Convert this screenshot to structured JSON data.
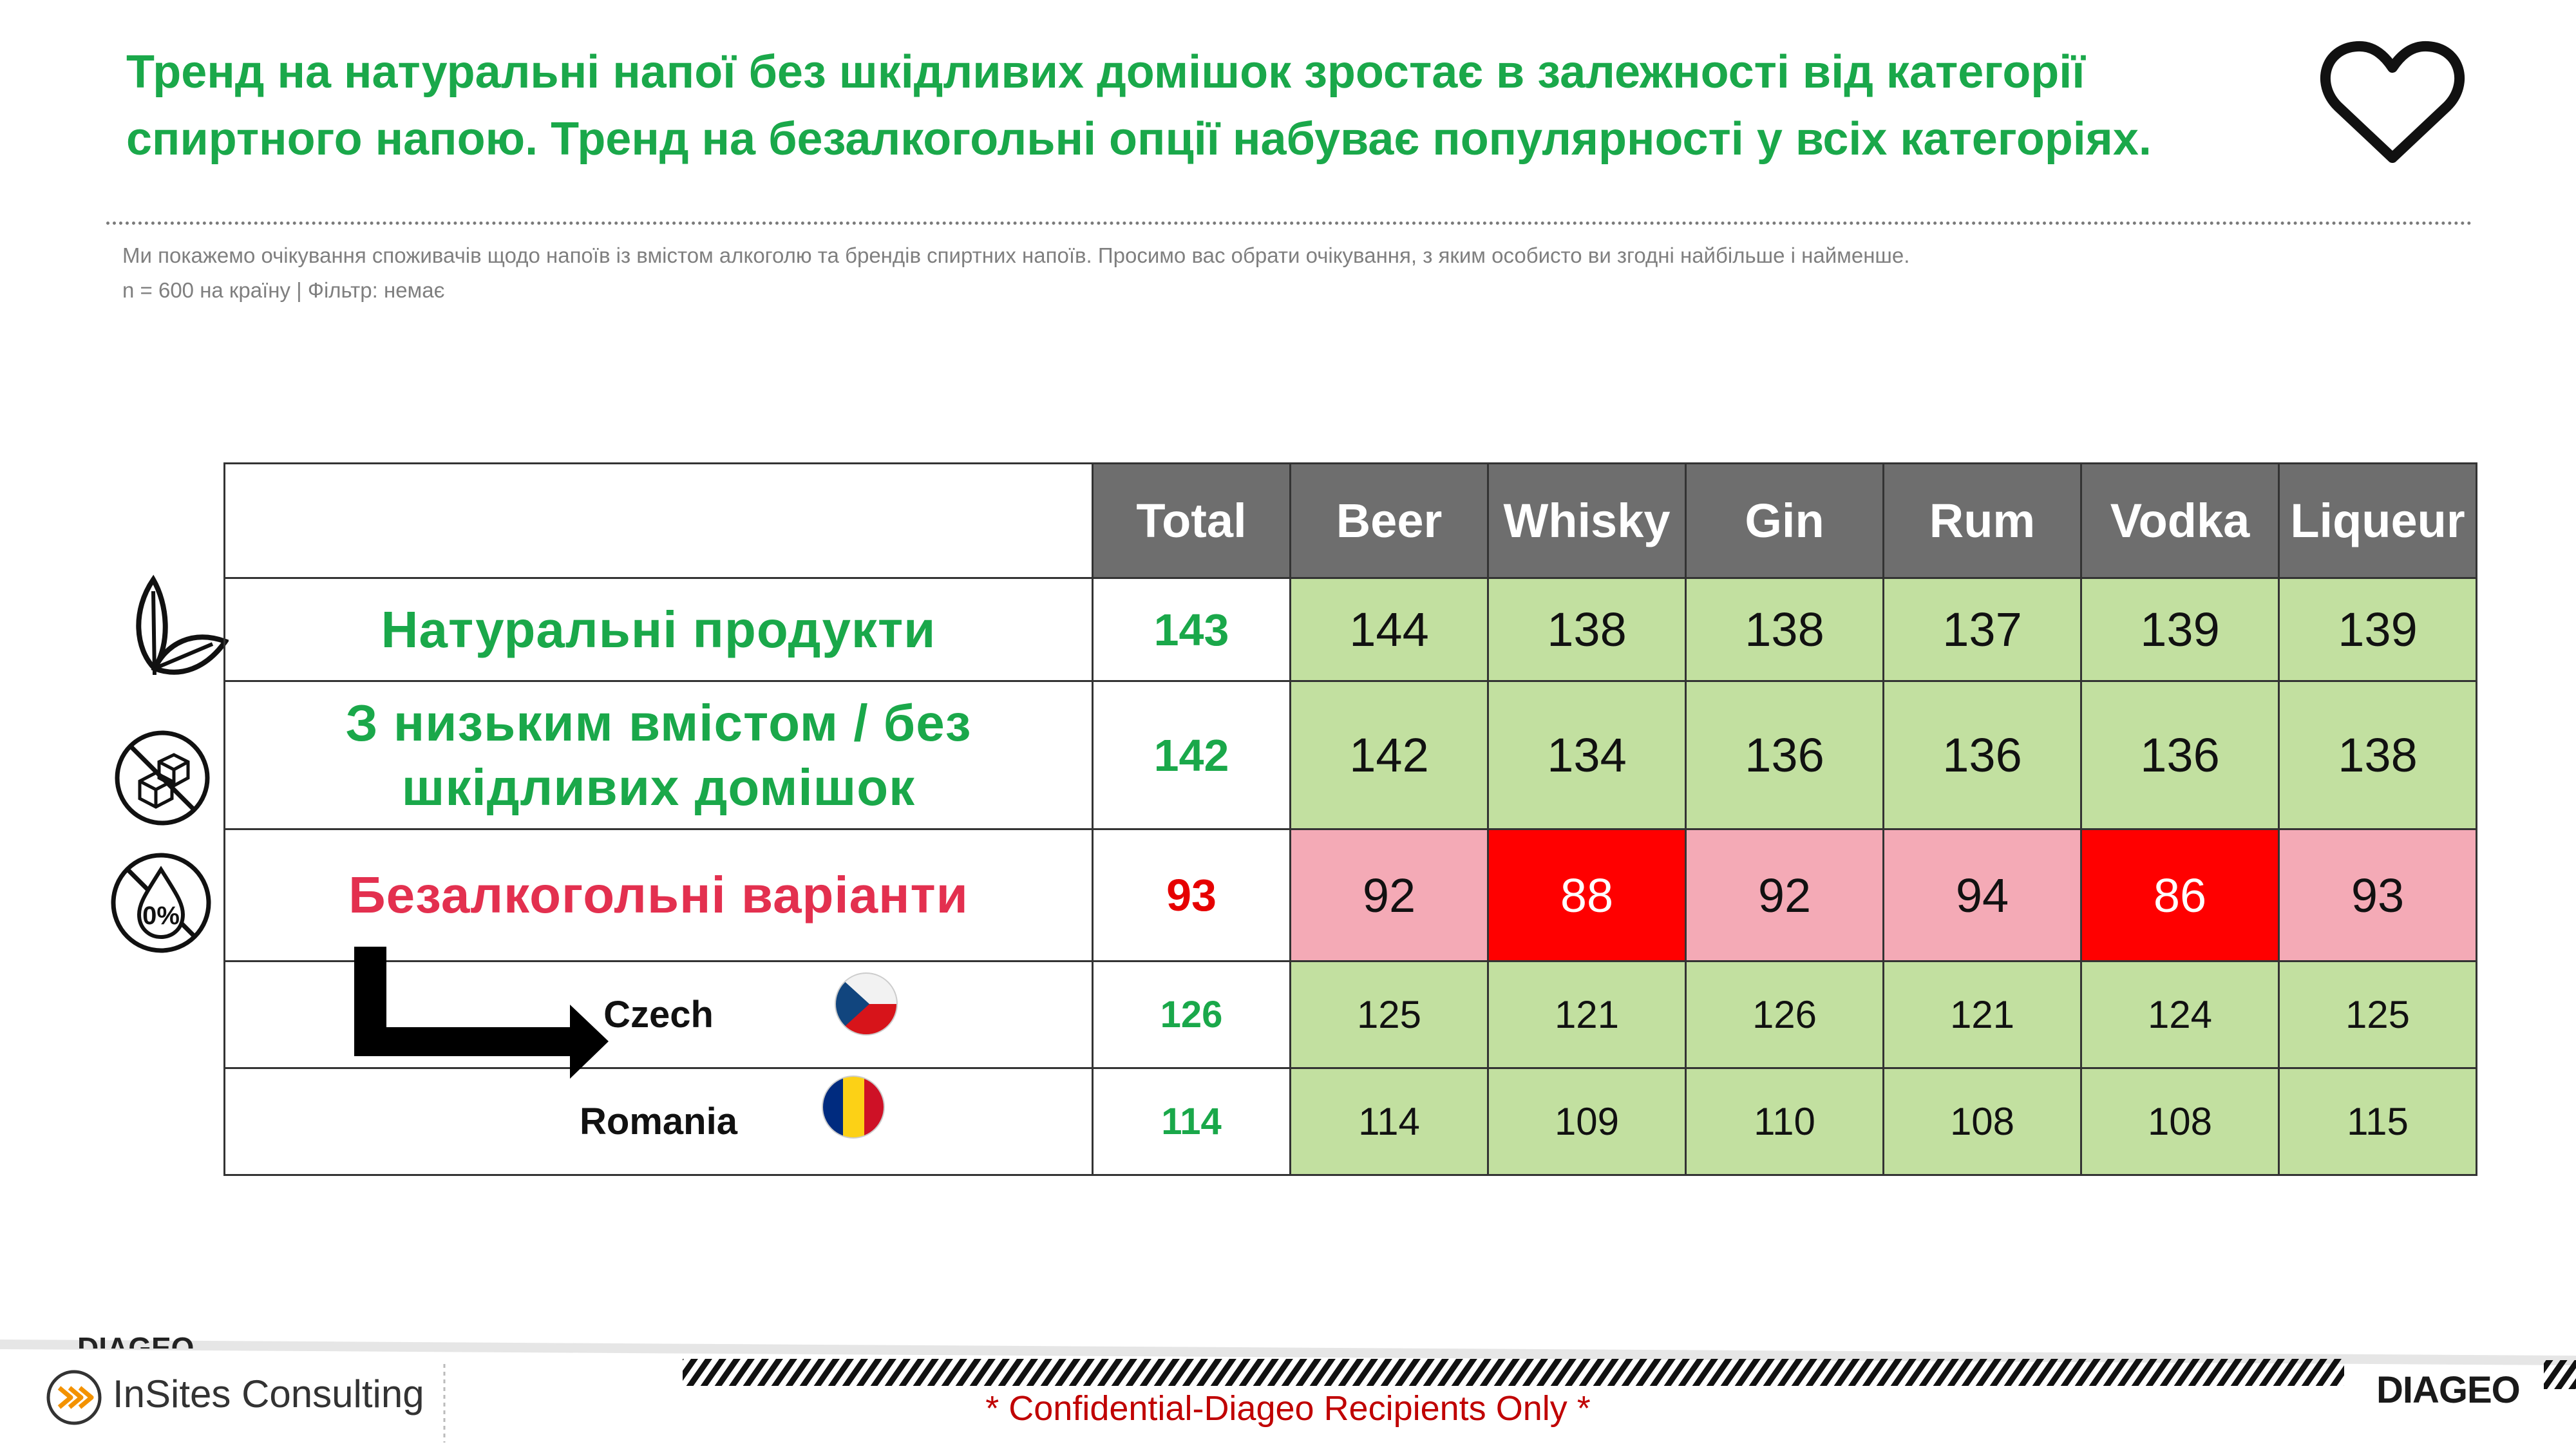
{
  "title": {
    "line1": "Тренд на натуральні напої без шкідливих домішок зростає в залежності від категорії",
    "line2": "спиртного напою. Тренд на безалкогольні опції набуває популярності у всіх категоріях."
  },
  "notes": {
    "question": "Ми покажемо очікування споживачів щодо напоїв із вмістом алкоголю та брендів спиртних напоїв. Просимо вас обрати очікування, з яким особисто ви згодні найбільше і найменше.",
    "sample": "n = 600 на країну | Фільтр: немає"
  },
  "table": {
    "columns": [
      "Total",
      "Beer",
      "Whisky",
      "Gin",
      "Rum",
      "Vodka",
      "Liqueur"
    ],
    "rows": [
      {
        "label": "Натуральні продукти",
        "total": "143",
        "values": [
          "144",
          "138",
          "138",
          "137",
          "139",
          "139"
        ]
      },
      {
        "label_line1": "З низьким вмістом / без",
        "label_line2": "шкідливих домішок",
        "total": "142",
        "values": [
          "142",
          "134",
          "136",
          "136",
          "136",
          "138"
        ]
      },
      {
        "label": "Безалкогольні варіанти",
        "total": "93",
        "values": [
          "92",
          "88",
          "92",
          "94",
          "86",
          "93"
        ]
      },
      {
        "label": "Czech",
        "total": "126",
        "values": [
          "125",
          "121",
          "126",
          "121",
          "124",
          "125"
        ]
      },
      {
        "label": "Romania",
        "total": "114",
        "values": [
          "114",
          "109",
          "110",
          "108",
          "108",
          "115"
        ]
      }
    ]
  },
  "icons": {
    "heart": "heart-icon",
    "leaf": "leaf-icon",
    "no-sugar": "no-sugar-icon",
    "zero-percent": "zero-alcohol-icon",
    "arrow": "arrow-down-right-icon"
  },
  "colors": {
    "title_green": "#1aa84a",
    "cell_green": "#c2e0a0",
    "cell_pink": "#f4aab6",
    "cell_red": "#ff0000",
    "header_gray": "#6e6e6e",
    "label_red": "#e3304f"
  },
  "footer": {
    "confidential": "* Confidential-Diageo Recipients Only *",
    "insites": "InSites Consulting",
    "diageo": "DIAGEO",
    "diageo_partial": "DIAGEO"
  }
}
